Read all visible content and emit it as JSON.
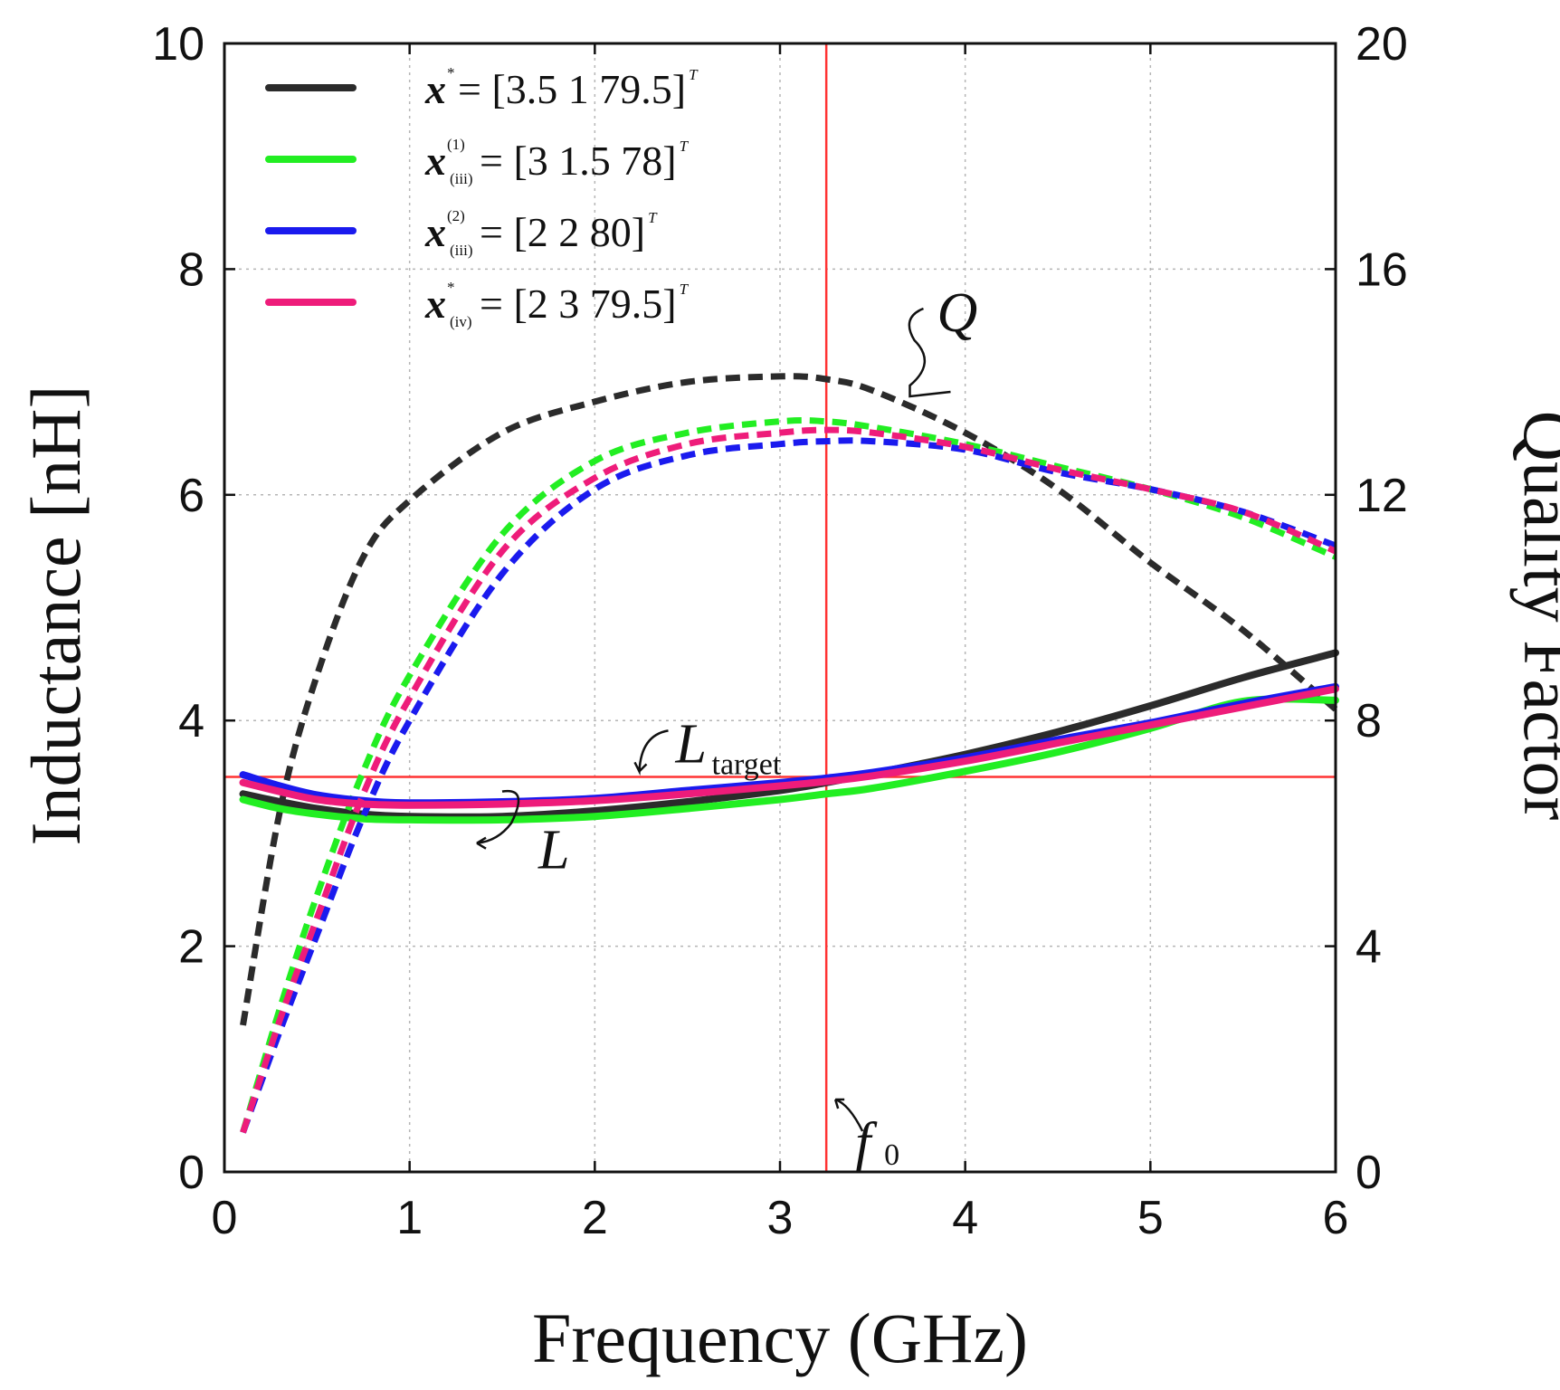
{
  "colors": {
    "black": "#2b2b2b",
    "green": "#22ee22",
    "blue": "#1a1aee",
    "pink": "#ee1c7a",
    "red": "#ff3333",
    "grid": "#b5b5b5",
    "frame": "#111111"
  },
  "chart_data": {
    "type": "line",
    "xlabel": "Frequency (GHz)",
    "ylabel": "Inductance [nH]",
    "y2label": "Quality Factor",
    "xlim": [
      0,
      6
    ],
    "ylim": [
      0,
      10
    ],
    "y2lim": [
      0,
      20
    ],
    "xticks": [
      0,
      1,
      2,
      3,
      4,
      5,
      6
    ],
    "yticks": [
      0,
      2,
      4,
      6,
      8,
      10
    ],
    "y2ticks": [
      0,
      4,
      8,
      12,
      16,
      20
    ],
    "grid": true,
    "legend_position": "top-left",
    "x": [
      0.1,
      0.3,
      0.5,
      0.75,
      1.0,
      1.5,
      2.0,
      2.5,
      3.0,
      3.25,
      3.5,
      4.0,
      4.5,
      5.0,
      5.5,
      6.0
    ],
    "series": [
      {
        "name": "x* = [3.5 1 79.5]T",
        "color_key": "black",
        "inductance": [
          3.35,
          3.28,
          3.22,
          3.17,
          3.15,
          3.15,
          3.2,
          3.28,
          3.38,
          3.45,
          3.53,
          3.7,
          3.9,
          4.13,
          4.38,
          4.6
        ],
        "quality": [
          2.6,
          6.4,
          8.8,
          10.9,
          11.9,
          13.1,
          13.65,
          14.0,
          14.1,
          14.05,
          13.85,
          13.1,
          12.1,
          10.8,
          9.6,
          8.2
        ]
      },
      {
        "name": "x(1)(iii) = [3 1.5 78]T",
        "color_key": "green",
        "inductance": [
          3.3,
          3.22,
          3.17,
          3.13,
          3.12,
          3.12,
          3.15,
          3.22,
          3.3,
          3.35,
          3.4,
          3.55,
          3.72,
          3.93,
          4.17,
          4.18
        ],
        "quality": [
          0.7,
          2.9,
          4.9,
          7.1,
          8.8,
          11.3,
          12.6,
          13.1,
          13.3,
          13.3,
          13.2,
          12.9,
          12.5,
          12.1,
          11.6,
          10.9
        ]
      },
      {
        "name": "x(2)(iii) = [2 2 80]T",
        "color_key": "blue",
        "inductance": [
          3.52,
          3.42,
          3.34,
          3.29,
          3.27,
          3.28,
          3.31,
          3.38,
          3.45,
          3.49,
          3.54,
          3.67,
          3.83,
          3.98,
          4.15,
          4.3
        ],
        "quality": [
          0.7,
          2.5,
          4.2,
          6.3,
          8.0,
          10.6,
          12.1,
          12.7,
          12.9,
          12.95,
          12.95,
          12.8,
          12.4,
          12.1,
          11.7,
          11.1
        ]
      },
      {
        "name": "x*(iv) = [2 3 79.5]T",
        "color_key": "pink",
        "inductance": [
          3.45,
          3.37,
          3.3,
          3.26,
          3.25,
          3.26,
          3.29,
          3.35,
          3.42,
          3.46,
          3.51,
          3.64,
          3.8,
          3.96,
          4.12,
          4.28
        ],
        "quality": [
          0.7,
          2.7,
          4.5,
          6.7,
          8.4,
          11.0,
          12.3,
          12.9,
          13.1,
          13.15,
          13.1,
          12.85,
          12.45,
          12.1,
          11.7,
          11.0
        ]
      }
    ],
    "reference_lines": {
      "L_target": 3.5,
      "f0": 3.25
    },
    "legend": [
      {
        "base": "x",
        "sup": "*",
        "sub": "",
        "rest": " = [3.5 1 79.5]",
        "T": "T",
        "color_key": "black"
      },
      {
        "base": "x",
        "sup": "(1)",
        "sub": "(iii)",
        "rest": " = [3 1.5 78]",
        "T": "T",
        "color_key": "green"
      },
      {
        "base": "x",
        "sup": "(2)",
        "sub": "(iii)",
        "rest": "  = [2 2 80]",
        "T": "T",
        "color_key": "blue"
      },
      {
        "base": "x",
        "sup": "*",
        "sub": "(iv)",
        "rest": "  = [2 3 79.5]",
        "T": "T",
        "color_key": "pink"
      }
    ],
    "annotations": {
      "Q": "Q",
      "L": "L",
      "L_target_main": "L",
      "L_target_sub": "target",
      "f0_main": "f",
      "f0_sub": "0"
    }
  }
}
